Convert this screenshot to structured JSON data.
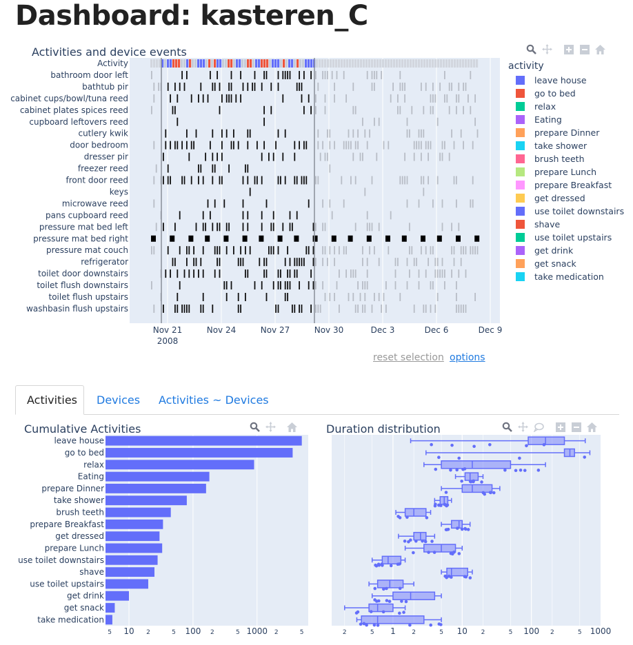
{
  "page": {
    "title": "Dashboard: kasteren_C"
  },
  "timeline": {
    "title": "Activities and device events",
    "row_labels": [
      "Activity",
      "bathroom door left",
      "bathtub pir",
      "cabinet cups/bowl/tuna reed",
      "cabinet plates spices reed",
      "cupboard leftovers reed",
      "cutlery kwik",
      "door bedroom",
      "dresser pir",
      "freezer reed",
      "front door reed",
      "keys",
      "microwave reed",
      "pans cupboard reed",
      "pressure mat bed left",
      "pressure mat bed right",
      "pressure mat couch",
      "refrigerator",
      "toilet door downstairs",
      "toilet flush downstairs",
      "toilet flush upstairs",
      "washbasin flush upstairs"
    ],
    "x_ticks": [
      "Nov 21",
      "Nov 24",
      "Nov 27",
      "Nov 30",
      "Dec 3",
      "Dec 6",
      "Dec 9"
    ],
    "x_year": "2008",
    "legend_title": "activity",
    "legend": [
      {
        "name": "leave house",
        "color": "#636efa"
      },
      {
        "name": "go to bed",
        "color": "#ef553b"
      },
      {
        "name": "relax",
        "color": "#00cc96"
      },
      {
        "name": "Eating",
        "color": "#ab63fa"
      },
      {
        "name": "prepare Dinner",
        "color": "#ffa15a"
      },
      {
        "name": "take shower",
        "color": "#19d3f3"
      },
      {
        "name": "brush teeth",
        "color": "#ff6692"
      },
      {
        "name": "prepare Lunch",
        "color": "#b6e880"
      },
      {
        "name": "prepare Breakfast",
        "color": "#ff97ff"
      },
      {
        "name": "get dressed",
        "color": "#fecb52"
      },
      {
        "name": "use toilet downstairs",
        "color": "#636efa"
      },
      {
        "name": "shave",
        "color": "#ef553b"
      },
      {
        "name": "use toilet upstairs",
        "color": "#00cc96"
      },
      {
        "name": "get drink",
        "color": "#ab63fa"
      },
      {
        "name": "get snack",
        "color": "#ffa15a"
      },
      {
        "name": "take medication",
        "color": "#19d3f3"
      }
    ]
  },
  "controls": {
    "reset_label": "reset selection",
    "options_label": "options"
  },
  "tabs": [
    {
      "label": "Activities",
      "active": true
    },
    {
      "label": "Devices",
      "active": false
    },
    {
      "label": "Activities ~ Devices",
      "active": false
    }
  ],
  "icons": {
    "zoom": "magnifier-icon",
    "pan": "pan-cross-icon",
    "zoom_in": "plus-square-icon",
    "zoom_out": "minus-square-icon",
    "home": "home-icon",
    "comment": "speech-bubble-icon"
  },
  "chart_data": [
    {
      "type": "bar",
      "title": "Cumulative Activities",
      "orientation": "horizontal",
      "x_scale": "log",
      "x_tick_labels": [
        "5",
        "10",
        "2",
        "5",
        "100",
        "2",
        "5",
        "1000",
        "2",
        "5"
      ],
      "categories": [
        "leave house",
        "go to bed",
        "relax",
        "Eating",
        "prepare Dinner",
        "take shower",
        "brush teeth",
        "prepare Breakfast",
        "get dressed",
        "prepare Lunch",
        "use toilet downstairs",
        "shave",
        "use toilet upstairs",
        "get drink",
        "get snack",
        "take medication"
      ],
      "values": [
        5000,
        3600,
        900,
        180,
        160,
        80,
        45,
        34,
        30,
        33,
        28,
        25,
        20,
        10,
        6,
        5.5
      ],
      "color": "#636efa"
    },
    {
      "type": "box",
      "title": "Duration distribution",
      "x_scale": "log",
      "x_tick_labels": [
        "2",
        "5",
        "1",
        "2",
        "5",
        "10",
        "2",
        "5",
        "100",
        "2",
        "5",
        "1000"
      ],
      "categories": [
        "leave house",
        "go to bed",
        "relax",
        "Eating",
        "prepare Dinner",
        "take shower",
        "brush teeth",
        "prepare Breakfast",
        "get dressed",
        "prepare Lunch",
        "use toilet downstairs",
        "shave",
        "use toilet upstairs",
        "get drink",
        "get snack",
        "take medication"
      ],
      "boxes": [
        {
          "min": 1.8,
          "q1": 90,
          "med": 160,
          "q3": 300,
          "max": 600
        },
        {
          "min": 3,
          "q1": 300,
          "med": 360,
          "q3": 420,
          "max": 700
        },
        {
          "min": 2.8,
          "q1": 5,
          "med": 14,
          "q3": 50,
          "max": 160
        },
        {
          "min": 8,
          "q1": 11,
          "med": 13,
          "q3": 17,
          "max": 20
        },
        {
          "min": 5,
          "q1": 10,
          "med": 14,
          "q3": 27,
          "max": 35
        },
        {
          "min": 4,
          "q1": 4.8,
          "med": 5.5,
          "q3": 6.2,
          "max": 7
        },
        {
          "min": 1.1,
          "q1": 1.5,
          "med": 2,
          "q3": 3,
          "max": 3.5
        },
        {
          "min": 5,
          "q1": 7,
          "med": 9,
          "q3": 10,
          "max": 13
        },
        {
          "min": 1.2,
          "q1": 2,
          "med": 2.5,
          "q3": 3,
          "max": 4
        },
        {
          "min": 1.5,
          "q1": 2.8,
          "med": 5,
          "q3": 8,
          "max": 10
        },
        {
          "min": 0.5,
          "q1": 0.7,
          "med": 0.85,
          "q3": 1.3,
          "max": 1.5
        },
        {
          "min": 5,
          "q1": 6,
          "med": 7,
          "q3": 12,
          "max": 14
        },
        {
          "min": 0.45,
          "q1": 0.6,
          "med": 0.9,
          "q3": 1.4,
          "max": 2
        },
        {
          "min": 0.5,
          "q1": 1,
          "med": 1.8,
          "q3": 4,
          "max": 5
        },
        {
          "min": 0.2,
          "q1": 0.45,
          "med": 0.6,
          "q3": 1,
          "max": 1.5
        },
        {
          "min": 0.3,
          "q1": 0.35,
          "med": 0.6,
          "q3": 2.8,
          "max": 5
        }
      ],
      "color": "#636efa"
    }
  ]
}
